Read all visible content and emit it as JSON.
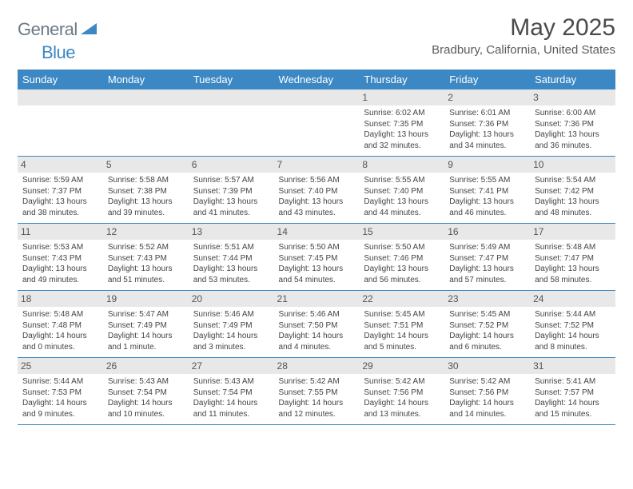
{
  "logo": {
    "general": "General",
    "blue": "Blue"
  },
  "title": "May 2025",
  "location": "Bradbury, California, United States",
  "colors": {
    "header_bg": "#3b88c4",
    "header_text": "#ffffff",
    "daynum_bg": "#e8e8e8",
    "row_border": "#3b88c4",
    "logo_gray": "#6b7a86",
    "logo_blue": "#3b88c4"
  },
  "dow": [
    "Sunday",
    "Monday",
    "Tuesday",
    "Wednesday",
    "Thursday",
    "Friday",
    "Saturday"
  ],
  "weeks": [
    [
      {
        "n": "",
        "sr": "",
        "ss": "",
        "d1": "",
        "d2": ""
      },
      {
        "n": "",
        "sr": "",
        "ss": "",
        "d1": "",
        "d2": ""
      },
      {
        "n": "",
        "sr": "",
        "ss": "",
        "d1": "",
        "d2": ""
      },
      {
        "n": "",
        "sr": "",
        "ss": "",
        "d1": "",
        "d2": ""
      },
      {
        "n": "1",
        "sr": "Sunrise: 6:02 AM",
        "ss": "Sunset: 7:35 PM",
        "d1": "Daylight: 13 hours",
        "d2": "and 32 minutes."
      },
      {
        "n": "2",
        "sr": "Sunrise: 6:01 AM",
        "ss": "Sunset: 7:36 PM",
        "d1": "Daylight: 13 hours",
        "d2": "and 34 minutes."
      },
      {
        "n": "3",
        "sr": "Sunrise: 6:00 AM",
        "ss": "Sunset: 7:36 PM",
        "d1": "Daylight: 13 hours",
        "d2": "and 36 minutes."
      }
    ],
    [
      {
        "n": "4",
        "sr": "Sunrise: 5:59 AM",
        "ss": "Sunset: 7:37 PM",
        "d1": "Daylight: 13 hours",
        "d2": "and 38 minutes."
      },
      {
        "n": "5",
        "sr": "Sunrise: 5:58 AM",
        "ss": "Sunset: 7:38 PM",
        "d1": "Daylight: 13 hours",
        "d2": "and 39 minutes."
      },
      {
        "n": "6",
        "sr": "Sunrise: 5:57 AM",
        "ss": "Sunset: 7:39 PM",
        "d1": "Daylight: 13 hours",
        "d2": "and 41 minutes."
      },
      {
        "n": "7",
        "sr": "Sunrise: 5:56 AM",
        "ss": "Sunset: 7:40 PM",
        "d1": "Daylight: 13 hours",
        "d2": "and 43 minutes."
      },
      {
        "n": "8",
        "sr": "Sunrise: 5:55 AM",
        "ss": "Sunset: 7:40 PM",
        "d1": "Daylight: 13 hours",
        "d2": "and 44 minutes."
      },
      {
        "n": "9",
        "sr": "Sunrise: 5:55 AM",
        "ss": "Sunset: 7:41 PM",
        "d1": "Daylight: 13 hours",
        "d2": "and 46 minutes."
      },
      {
        "n": "10",
        "sr": "Sunrise: 5:54 AM",
        "ss": "Sunset: 7:42 PM",
        "d1": "Daylight: 13 hours",
        "d2": "and 48 minutes."
      }
    ],
    [
      {
        "n": "11",
        "sr": "Sunrise: 5:53 AM",
        "ss": "Sunset: 7:43 PM",
        "d1": "Daylight: 13 hours",
        "d2": "and 49 minutes."
      },
      {
        "n": "12",
        "sr": "Sunrise: 5:52 AM",
        "ss": "Sunset: 7:43 PM",
        "d1": "Daylight: 13 hours",
        "d2": "and 51 minutes."
      },
      {
        "n": "13",
        "sr": "Sunrise: 5:51 AM",
        "ss": "Sunset: 7:44 PM",
        "d1": "Daylight: 13 hours",
        "d2": "and 53 minutes."
      },
      {
        "n": "14",
        "sr": "Sunrise: 5:50 AM",
        "ss": "Sunset: 7:45 PM",
        "d1": "Daylight: 13 hours",
        "d2": "and 54 minutes."
      },
      {
        "n": "15",
        "sr": "Sunrise: 5:50 AM",
        "ss": "Sunset: 7:46 PM",
        "d1": "Daylight: 13 hours",
        "d2": "and 56 minutes."
      },
      {
        "n": "16",
        "sr": "Sunrise: 5:49 AM",
        "ss": "Sunset: 7:47 PM",
        "d1": "Daylight: 13 hours",
        "d2": "and 57 minutes."
      },
      {
        "n": "17",
        "sr": "Sunrise: 5:48 AM",
        "ss": "Sunset: 7:47 PM",
        "d1": "Daylight: 13 hours",
        "d2": "and 58 minutes."
      }
    ],
    [
      {
        "n": "18",
        "sr": "Sunrise: 5:48 AM",
        "ss": "Sunset: 7:48 PM",
        "d1": "Daylight: 14 hours",
        "d2": "and 0 minutes."
      },
      {
        "n": "19",
        "sr": "Sunrise: 5:47 AM",
        "ss": "Sunset: 7:49 PM",
        "d1": "Daylight: 14 hours",
        "d2": "and 1 minute."
      },
      {
        "n": "20",
        "sr": "Sunrise: 5:46 AM",
        "ss": "Sunset: 7:49 PM",
        "d1": "Daylight: 14 hours",
        "d2": "and 3 minutes."
      },
      {
        "n": "21",
        "sr": "Sunrise: 5:46 AM",
        "ss": "Sunset: 7:50 PM",
        "d1": "Daylight: 14 hours",
        "d2": "and 4 minutes."
      },
      {
        "n": "22",
        "sr": "Sunrise: 5:45 AM",
        "ss": "Sunset: 7:51 PM",
        "d1": "Daylight: 14 hours",
        "d2": "and 5 minutes."
      },
      {
        "n": "23",
        "sr": "Sunrise: 5:45 AM",
        "ss": "Sunset: 7:52 PM",
        "d1": "Daylight: 14 hours",
        "d2": "and 6 minutes."
      },
      {
        "n": "24",
        "sr": "Sunrise: 5:44 AM",
        "ss": "Sunset: 7:52 PM",
        "d1": "Daylight: 14 hours",
        "d2": "and 8 minutes."
      }
    ],
    [
      {
        "n": "25",
        "sr": "Sunrise: 5:44 AM",
        "ss": "Sunset: 7:53 PM",
        "d1": "Daylight: 14 hours",
        "d2": "and 9 minutes."
      },
      {
        "n": "26",
        "sr": "Sunrise: 5:43 AM",
        "ss": "Sunset: 7:54 PM",
        "d1": "Daylight: 14 hours",
        "d2": "and 10 minutes."
      },
      {
        "n": "27",
        "sr": "Sunrise: 5:43 AM",
        "ss": "Sunset: 7:54 PM",
        "d1": "Daylight: 14 hours",
        "d2": "and 11 minutes."
      },
      {
        "n": "28",
        "sr": "Sunrise: 5:42 AM",
        "ss": "Sunset: 7:55 PM",
        "d1": "Daylight: 14 hours",
        "d2": "and 12 minutes."
      },
      {
        "n": "29",
        "sr": "Sunrise: 5:42 AM",
        "ss": "Sunset: 7:56 PM",
        "d1": "Daylight: 14 hours",
        "d2": "and 13 minutes."
      },
      {
        "n": "30",
        "sr": "Sunrise: 5:42 AM",
        "ss": "Sunset: 7:56 PM",
        "d1": "Daylight: 14 hours",
        "d2": "and 14 minutes."
      },
      {
        "n": "31",
        "sr": "Sunrise: 5:41 AM",
        "ss": "Sunset: 7:57 PM",
        "d1": "Daylight: 14 hours",
        "d2": "and 15 minutes."
      }
    ]
  ]
}
